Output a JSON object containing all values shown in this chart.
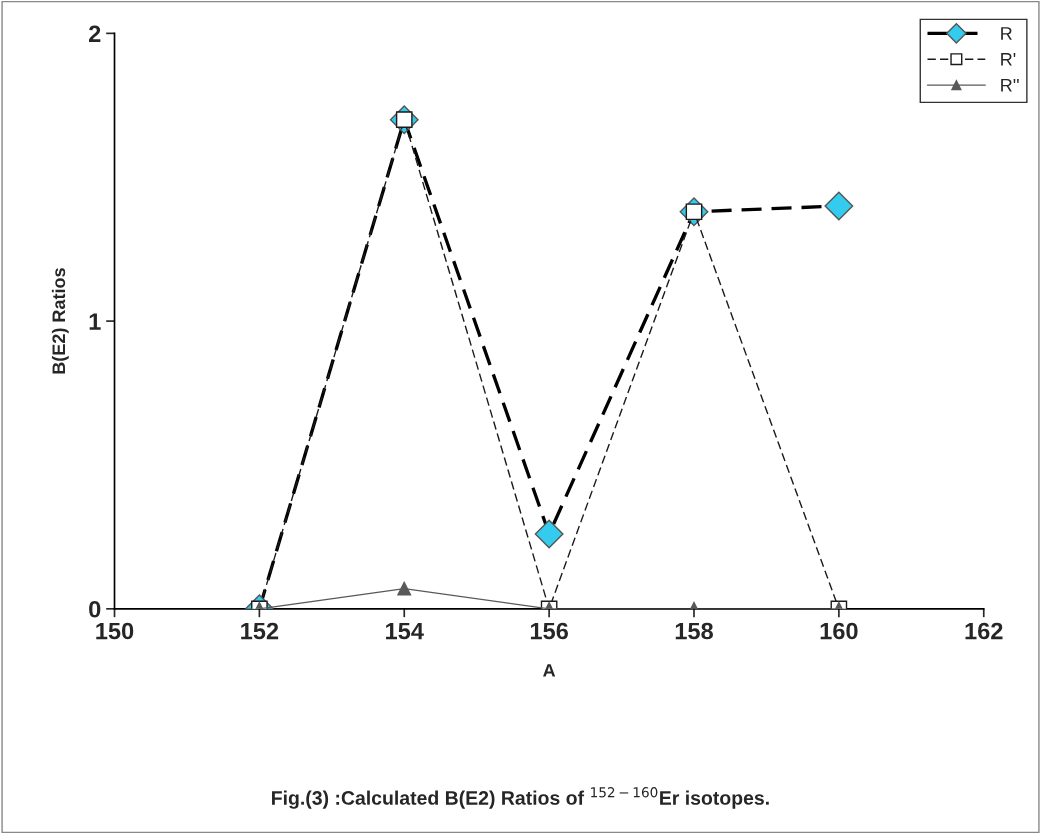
{
  "chart_data": {
    "type": "line",
    "xlabel": "A",
    "ylabel": "B(E2) Ratios",
    "x": [
      152,
      154,
      156,
      158,
      160
    ],
    "series": [
      {
        "name": "R",
        "color": "#33ccee",
        "values": [
          0,
          1.7,
          0.26,
          1.38,
          1.4
        ],
        "marker": "diamond",
        "line_style": "dashed"
      },
      {
        "name": "R'",
        "color": "#1a1a1a",
        "values": [
          0,
          1.7,
          0,
          1.38,
          0
        ],
        "marker": "square",
        "line_style": "dashed"
      },
      {
        "name": "R''",
        "color": "#595959",
        "values": [
          0,
          0.07,
          0,
          0,
          0
        ],
        "marker": "triangle",
        "line_style": "solid"
      }
    ],
    "xlim": [
      150,
      162
    ],
    "xticks": [
      150,
      152,
      154,
      156,
      158,
      160,
      162
    ],
    "ylim": [
      0,
      2
    ],
    "yticks": [
      0,
      1,
      2
    ],
    "grid": false,
    "legend": "top right",
    "annotations": [
      "Fig.(3) :Calculated B(E2) Ratios of $^{152−160}$Er isotopes."
    ]
  }
}
